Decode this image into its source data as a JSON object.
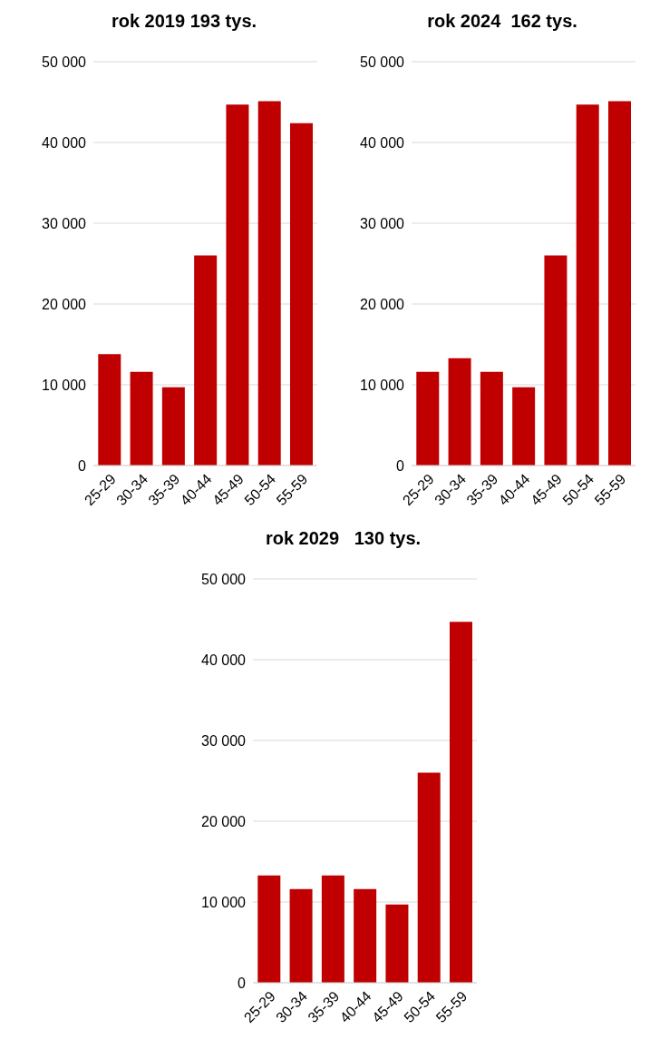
{
  "chart_data": [
    {
      "type": "bar",
      "title": "rok 2019 193 tys.",
      "categories": [
        "25-29",
        "30-34",
        "35-39",
        "40-44",
        "45-49",
        "50-54",
        "55-59"
      ],
      "values": [
        13800,
        11600,
        9700,
        26000,
        44700,
        45100,
        42400
      ],
      "color": "#c00000",
      "ylim": [
        0,
        50000
      ],
      "yticks": [
        {
          "value": 0,
          "label": "0"
        },
        {
          "value": 10000,
          "label": "10 000"
        },
        {
          "value": 20000,
          "label": "20 000"
        },
        {
          "value": 30000,
          "label": "30 000"
        },
        {
          "value": 40000,
          "label": "40 000"
        },
        {
          "value": 50000,
          "label": "50 000"
        }
      ],
      "grid": "y"
    },
    {
      "type": "bar",
      "title": "rok 2024  162 tys.",
      "categories": [
        "25-29",
        "30-34",
        "35-39",
        "40-44",
        "45-49",
        "50-54",
        "55-59"
      ],
      "values": [
        11600,
        13300,
        11600,
        9700,
        26000,
        44700,
        45100
      ],
      "color": "#c00000",
      "ylim": [
        0,
        50000
      ],
      "yticks": [
        {
          "value": 0,
          "label": "0"
        },
        {
          "value": 10000,
          "label": "10 000"
        },
        {
          "value": 20000,
          "label": "20 000"
        },
        {
          "value": 30000,
          "label": "30 000"
        },
        {
          "value": 40000,
          "label": "40 000"
        },
        {
          "value": 50000,
          "label": "50 000"
        }
      ],
      "grid": "y"
    },
    {
      "type": "bar",
      "title": "rok 2029   130 tys.",
      "categories": [
        "25-29",
        "30-34",
        "35-39",
        "40-44",
        "45-49",
        "50-54",
        "55-59"
      ],
      "values": [
        13300,
        11600,
        13300,
        11600,
        9700,
        26000,
        44700
      ],
      "color": "#c00000",
      "ylim": [
        0,
        50000
      ],
      "yticks": [
        {
          "value": 0,
          "label": "0"
        },
        {
          "value": 10000,
          "label": "10 000"
        },
        {
          "value": 20000,
          "label": "20 000"
        },
        {
          "value": 30000,
          "label": "30 000"
        },
        {
          "value": 40000,
          "label": "40 000"
        },
        {
          "value": 50000,
          "label": "50 000"
        }
      ],
      "grid": "y"
    }
  ]
}
